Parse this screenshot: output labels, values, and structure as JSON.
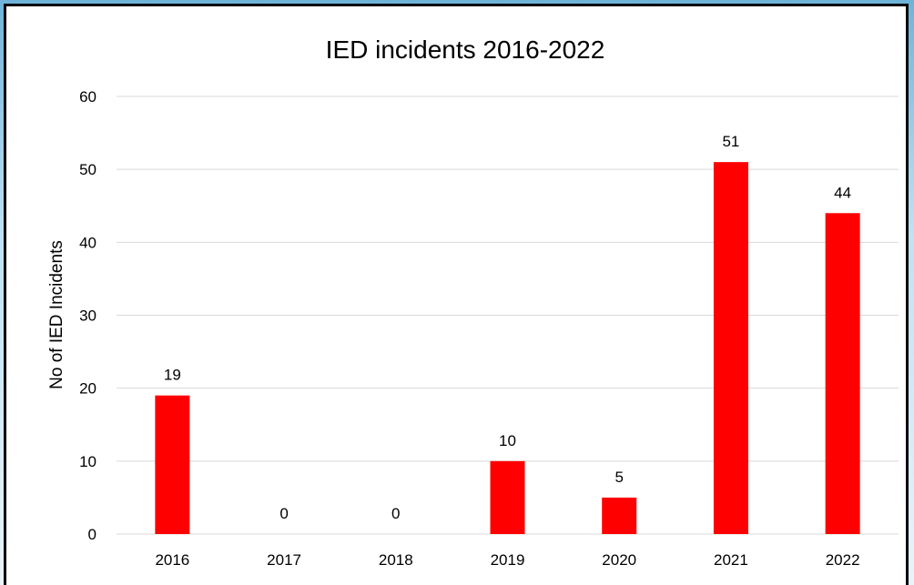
{
  "chart_data": {
    "type": "bar",
    "title": "IED incidents 2016-2022",
    "xlabel": "",
    "ylabel": "No of IED Incidents",
    "categories": [
      "2016",
      "2017",
      "2018",
      "2019",
      "2020",
      "2021",
      "2022"
    ],
    "values": [
      19,
      0,
      0,
      10,
      5,
      51,
      44
    ],
    "ylim": [
      0,
      60
    ],
    "yticks": [
      "0",
      "10",
      "20",
      "30",
      "40",
      "50",
      "60"
    ],
    "data_labels": [
      "19",
      "0",
      "0",
      "10",
      "5",
      "51",
      "44"
    ],
    "bar_color": "#ff0000",
    "grid": true,
    "legend": "none"
  }
}
